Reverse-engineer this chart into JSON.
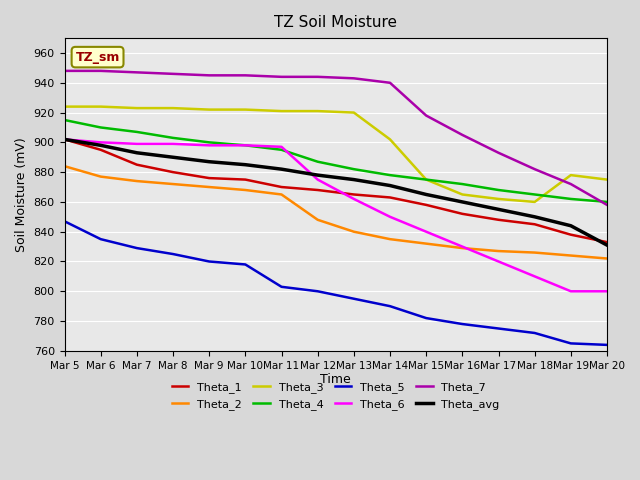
{
  "title": "TZ Soil Moisture",
  "xlabel": "Time",
  "ylabel": "Soil Moisture (mV)",
  "ylim": [
    760,
    970
  ],
  "xlim": [
    0,
    15
  ],
  "x_tick_labels": [
    "Mar 5",
    "Mar 6",
    "Mar 7",
    "Mar 8",
    "Mar 9",
    "Mar 10",
    "Mar 11",
    "Mar 12",
    "Mar 13",
    "Mar 14",
    "Mar 15",
    "Mar 16",
    "Mar 17",
    "Mar 18",
    "Mar 19",
    "Mar 20"
  ],
  "background_color": "#d8d8d8",
  "plot_bg_color": "#e8e8e8",
  "label_box": "TZ_sm",
  "series": {
    "Theta_1": {
      "color": "#cc0000",
      "points": [
        [
          0,
          902
        ],
        [
          1,
          895
        ],
        [
          2,
          885
        ],
        [
          3,
          880
        ],
        [
          4,
          876
        ],
        [
          5,
          875
        ],
        [
          6,
          870
        ],
        [
          7,
          868
        ],
        [
          8,
          865
        ],
        [
          9,
          863
        ],
        [
          10,
          858
        ],
        [
          11,
          852
        ],
        [
          12,
          848
        ],
        [
          13,
          845
        ],
        [
          14,
          838
        ],
        [
          15,
          833
        ]
      ]
    },
    "Theta_2": {
      "color": "#ff8800",
      "points": [
        [
          0,
          884
        ],
        [
          1,
          877
        ],
        [
          2,
          874
        ],
        [
          3,
          872
        ],
        [
          4,
          870
        ],
        [
          5,
          868
        ],
        [
          6,
          865
        ],
        [
          7,
          848
        ],
        [
          8,
          840
        ],
        [
          9,
          835
        ],
        [
          10,
          832
        ],
        [
          11,
          829
        ],
        [
          12,
          827
        ],
        [
          13,
          826
        ],
        [
          14,
          824
        ],
        [
          15,
          822
        ]
      ]
    },
    "Theta_3": {
      "color": "#cccc00",
      "points": [
        [
          0,
          924
        ],
        [
          1,
          924
        ],
        [
          2,
          923
        ],
        [
          3,
          923
        ],
        [
          4,
          922
        ],
        [
          5,
          922
        ],
        [
          6,
          921
        ],
        [
          7,
          921
        ],
        [
          8,
          920
        ],
        [
          9,
          902
        ],
        [
          10,
          875
        ],
        [
          11,
          865
        ],
        [
          12,
          862
        ],
        [
          13,
          860
        ],
        [
          14,
          878
        ],
        [
          15,
          875
        ]
      ]
    },
    "Theta_4": {
      "color": "#00bb00",
      "points": [
        [
          0,
          915
        ],
        [
          1,
          910
        ],
        [
          2,
          907
        ],
        [
          3,
          903
        ],
        [
          4,
          900
        ],
        [
          5,
          898
        ],
        [
          6,
          895
        ],
        [
          7,
          887
        ],
        [
          8,
          882
        ],
        [
          9,
          878
        ],
        [
          10,
          875
        ],
        [
          11,
          872
        ],
        [
          12,
          868
        ],
        [
          13,
          865
        ],
        [
          14,
          862
        ],
        [
          15,
          860
        ]
      ]
    },
    "Theta_5": {
      "color": "#0000cc",
      "points": [
        [
          0,
          847
        ],
        [
          1,
          835
        ],
        [
          2,
          829
        ],
        [
          3,
          825
        ],
        [
          4,
          820
        ],
        [
          5,
          818
        ],
        [
          6,
          803
        ],
        [
          7,
          800
        ],
        [
          8,
          795
        ],
        [
          9,
          790
        ],
        [
          10,
          782
        ],
        [
          11,
          778
        ],
        [
          12,
          775
        ],
        [
          13,
          772
        ],
        [
          14,
          765
        ],
        [
          15,
          764
        ]
      ]
    },
    "Theta_6": {
      "color": "#ff00ff",
      "points": [
        [
          0,
          902
        ],
        [
          1,
          900
        ],
        [
          2,
          899
        ],
        [
          3,
          899
        ],
        [
          4,
          898
        ],
        [
          5,
          898
        ],
        [
          6,
          897
        ],
        [
          7,
          875
        ],
        [
          8,
          862
        ],
        [
          9,
          850
        ],
        [
          10,
          840
        ],
        [
          11,
          830
        ],
        [
          12,
          820
        ],
        [
          13,
          810
        ],
        [
          14,
          800
        ],
        [
          15,
          800
        ]
      ]
    },
    "Theta_7": {
      "color": "#aa00aa",
      "points": [
        [
          0,
          948
        ],
        [
          1,
          948
        ],
        [
          2,
          947
        ],
        [
          3,
          946
        ],
        [
          4,
          945
        ],
        [
          5,
          945
        ],
        [
          6,
          944
        ],
        [
          7,
          944
        ],
        [
          8,
          943
        ],
        [
          9,
          940
        ],
        [
          10,
          918
        ],
        [
          11,
          905
        ],
        [
          12,
          893
        ],
        [
          13,
          882
        ],
        [
          14,
          872
        ],
        [
          15,
          858
        ]
      ]
    },
    "Theta_avg": {
      "color": "#000000",
      "points": [
        [
          0,
          902
        ],
        [
          1,
          898
        ],
        [
          2,
          893
        ],
        [
          3,
          890
        ],
        [
          4,
          887
        ],
        [
          5,
          885
        ],
        [
          6,
          882
        ],
        [
          7,
          878
        ],
        [
          8,
          875
        ],
        [
          9,
          871
        ],
        [
          10,
          865
        ],
        [
          11,
          860
        ],
        [
          12,
          855
        ],
        [
          13,
          850
        ],
        [
          14,
          844
        ],
        [
          15,
          831
        ]
      ]
    }
  }
}
